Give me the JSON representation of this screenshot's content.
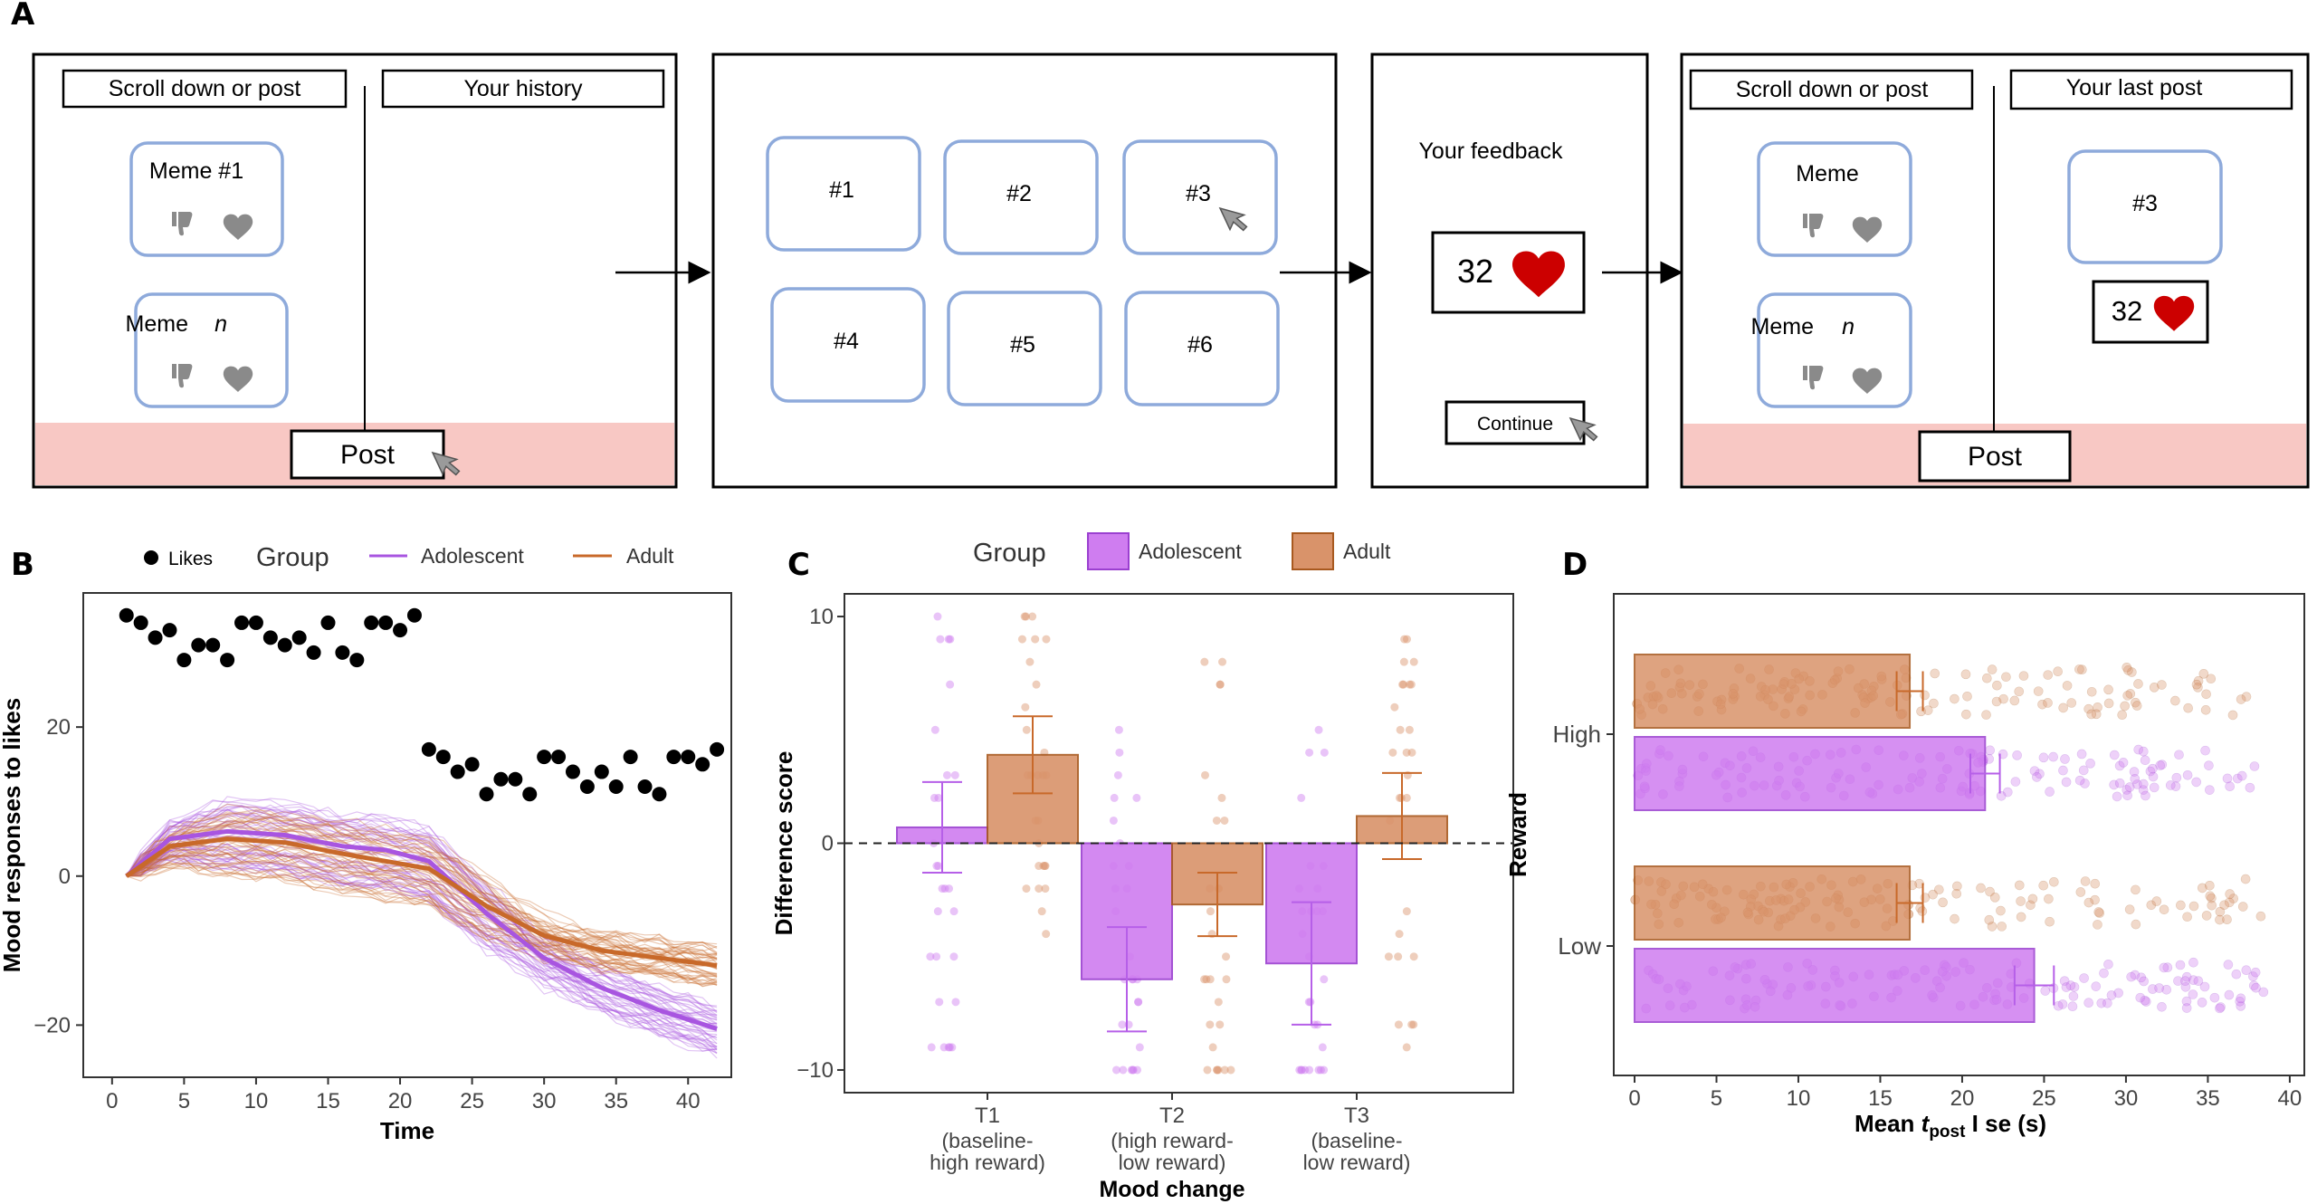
{
  "panels": {
    "a": "A",
    "b": "B",
    "c": "C",
    "d": "D"
  },
  "panelA": {
    "screen1": {
      "left_header": "Scroll down or post",
      "right_header": "Your history",
      "meme1": "Meme #1",
      "meme2": "Meme",
      "meme2_italic": "n",
      "post_button": "Post"
    },
    "screen2": {
      "tiles": [
        "#1",
        "#2",
        "#3",
        "#4",
        "#5",
        "#6"
      ]
    },
    "screen3": {
      "title": "Your feedback",
      "likes": "32",
      "continue_button": "Continue"
    },
    "screen4": {
      "left_header": "Scroll down or post",
      "right_header": "Your last post",
      "meme1": "Meme",
      "meme2": "Meme",
      "meme2_italic": "n",
      "last_post": "#3",
      "likes": "32",
      "post_button": "Post"
    }
  },
  "colors": {
    "adolescent": "#a855e0",
    "adult": "#c8692a",
    "adolescent_fill": "#cf7df0",
    "adult_fill": "#d9936a",
    "heart": "#cc0000",
    "pink": "#f8c8c4",
    "tile": "#8eaadb"
  },
  "chart_data": [
    {
      "panel": "B",
      "type": "line",
      "legend": {
        "likes_label": "Likes",
        "group_title": "Group",
        "series": [
          "Adolescent",
          "Adult"
        ]
      },
      "xlabel": "Time",
      "ylabel": "Mood responses to likes",
      "xticks": [
        0,
        5,
        10,
        15,
        20,
        25,
        30,
        35,
        40
      ],
      "yticks": [
        -20,
        0,
        20
      ],
      "xlim": [
        -2,
        43
      ],
      "ylim": [
        -27,
        38
      ],
      "likes": {
        "x": [
          1,
          2,
          3,
          4,
          5,
          6,
          7,
          8,
          9,
          10,
          11,
          12,
          13,
          14,
          15,
          16,
          17,
          18,
          19,
          20,
          21,
          22,
          23,
          24,
          25,
          26,
          27,
          28,
          29,
          30,
          31,
          32,
          33,
          34,
          35,
          36,
          37,
          38,
          39,
          40,
          41,
          42
        ],
        "y": [
          35,
          34,
          32,
          33,
          29,
          31,
          31,
          29,
          34,
          34,
          32,
          31,
          32,
          30,
          34,
          30,
          29,
          34,
          34,
          33,
          35,
          17,
          16,
          14,
          15,
          11,
          13,
          13,
          11,
          16,
          16,
          14,
          12,
          14,
          12,
          16,
          12,
          11,
          16,
          16,
          15,
          17
        ]
      },
      "series": [
        {
          "name": "Adolescent",
          "x": [
            1,
            4,
            8,
            12,
            16,
            19,
            22,
            26,
            30,
            34,
            38,
            42
          ],
          "y": [
            0,
            5,
            6,
            5.5,
            4,
            3.5,
            2,
            -5,
            -11,
            -15,
            -18,
            -20.5
          ]
        },
        {
          "name": "Adult",
          "x": [
            1,
            4,
            8,
            12,
            16,
            19,
            22,
            26,
            30,
            34,
            38,
            42
          ],
          "y": [
            0,
            4,
            5,
            4.5,
            3,
            2,
            1,
            -4,
            -8,
            -10,
            -11,
            -12
          ]
        }
      ]
    },
    {
      "panel": "C",
      "type": "bar",
      "legend": {
        "group_title": "Group",
        "series": [
          "Adolescent",
          "Adult"
        ]
      },
      "categories": [
        "T1",
        "T2",
        "T3"
      ],
      "category_sublabels": [
        [
          "(baseline-",
          "high reward)"
        ],
        [
          "(high reward-",
          "low reward)"
        ],
        [
          "(baseline-",
          "low reward)"
        ]
      ],
      "series": [
        {
          "name": "Adolescent",
          "values": [
            0.7,
            -6.0,
            -5.3
          ],
          "error": [
            2.0,
            2.3,
            2.7
          ]
        },
        {
          "name": "Adult",
          "values": [
            3.9,
            -2.7,
            1.2
          ],
          "error": [
            1.7,
            1.4,
            1.9
          ]
        }
      ],
      "xlabel": "Mood change",
      "ylabel": "Difference score",
      "yticks": [
        -10,
        0,
        10
      ],
      "ylim": [
        -11,
        11
      ]
    },
    {
      "panel": "D",
      "type": "bar",
      "orientation": "horizontal",
      "categories": [
        "High",
        "Low"
      ],
      "series": [
        {
          "name": "Adult",
          "values": [
            16.8,
            16.8
          ],
          "error": [
            0.8,
            0.8
          ]
        },
        {
          "name": "Adolescent",
          "values": [
            21.4,
            24.4
          ],
          "error": [
            0.9,
            1.2
          ]
        }
      ],
      "xlabel_prefix": "Mean ",
      "xlabel_italic": "t",
      "xlabel_sub": "post",
      "xlabel_suffix": " I se (s)",
      "ylabel": "Reward",
      "xticks": [
        0,
        5,
        10,
        15,
        20,
        25,
        30,
        35,
        40
      ],
      "xlim": [
        0,
        41
      ]
    }
  ]
}
